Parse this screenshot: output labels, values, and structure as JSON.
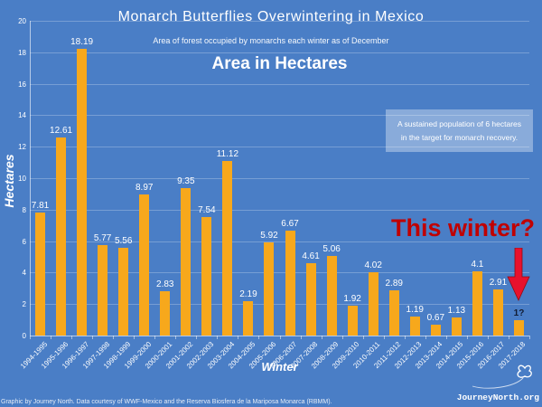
{
  "header": {
    "title": "Monarch Butterflies Overwintering in Mexico",
    "subtitle": "Area of forest occupied by monarchs each winter as of December"
  },
  "chart_data": {
    "type": "bar",
    "title": "Monarch Butterflies Overwintering in Mexico",
    "subtitle": "Area of forest occupied by monarchs each winter as of December",
    "inner_title": "Area in Hectares",
    "xlabel": "Winter",
    "ylabel": "Hectares",
    "ylim": [
      0,
      20
    ],
    "ytick_step": 2,
    "grid": true,
    "legend": "none",
    "background_color": "#4A7EC6",
    "bar_color": "#F7A81C",
    "categories": [
      "1994-1995",
      "1995-1996",
      "1996-1997",
      "1997-1998",
      "1998-1999",
      "1999-2000",
      "2000-2001",
      "2001-2002",
      "2002-2003",
      "2003-2004",
      "2004-2005",
      "2005-2006",
      "2006-2007",
      "2007-2008",
      "2008-2009",
      "2009-2010",
      "2010-2011",
      "2011-2012",
      "2012-2013",
      "2013-2014",
      "2014-2015",
      "2015-2016",
      "2016-2017",
      "2017-2018"
    ],
    "values": [
      7.81,
      12.61,
      18.19,
      5.77,
      5.56,
      8.97,
      2.83,
      9.35,
      7.54,
      11.12,
      2.19,
      5.92,
      6.67,
      4.61,
      5.06,
      1.92,
      4.02,
      2.89,
      1.19,
      0.67,
      1.13,
      4.1,
      2.91,
      1
    ],
    "value_labels": [
      "7.81",
      "12.61",
      "18.19",
      "5.77",
      "5.56",
      "8.97",
      "2.83",
      "9.35",
      "7.54",
      "11.12",
      "2.19",
      "5.92",
      "6.67",
      "4.61",
      "5.06",
      "1.92",
      "4.02",
      "2.89",
      "1.19",
      "0.67",
      "1.13",
      "4.1",
      "2.91",
      "1?"
    ],
    "value_label_color": "#FFFFFF",
    "last_value_label_color": "#111C33"
  },
  "callout": {
    "text_line1": "A sustained population of 6 hectares",
    "text_line2": "in the target for monarch recovery."
  },
  "annotation": {
    "label": "This winter?",
    "label_color": "#C00000",
    "arrow_color": "#E8112D"
  },
  "footer": {
    "credit": "Graphic by Journey North. Data courtesy of WWF-Mexico and the Reserva Biosfera de la Mariposa Monarca (RBMM).",
    "brand": "JourneyNorth.org"
  }
}
